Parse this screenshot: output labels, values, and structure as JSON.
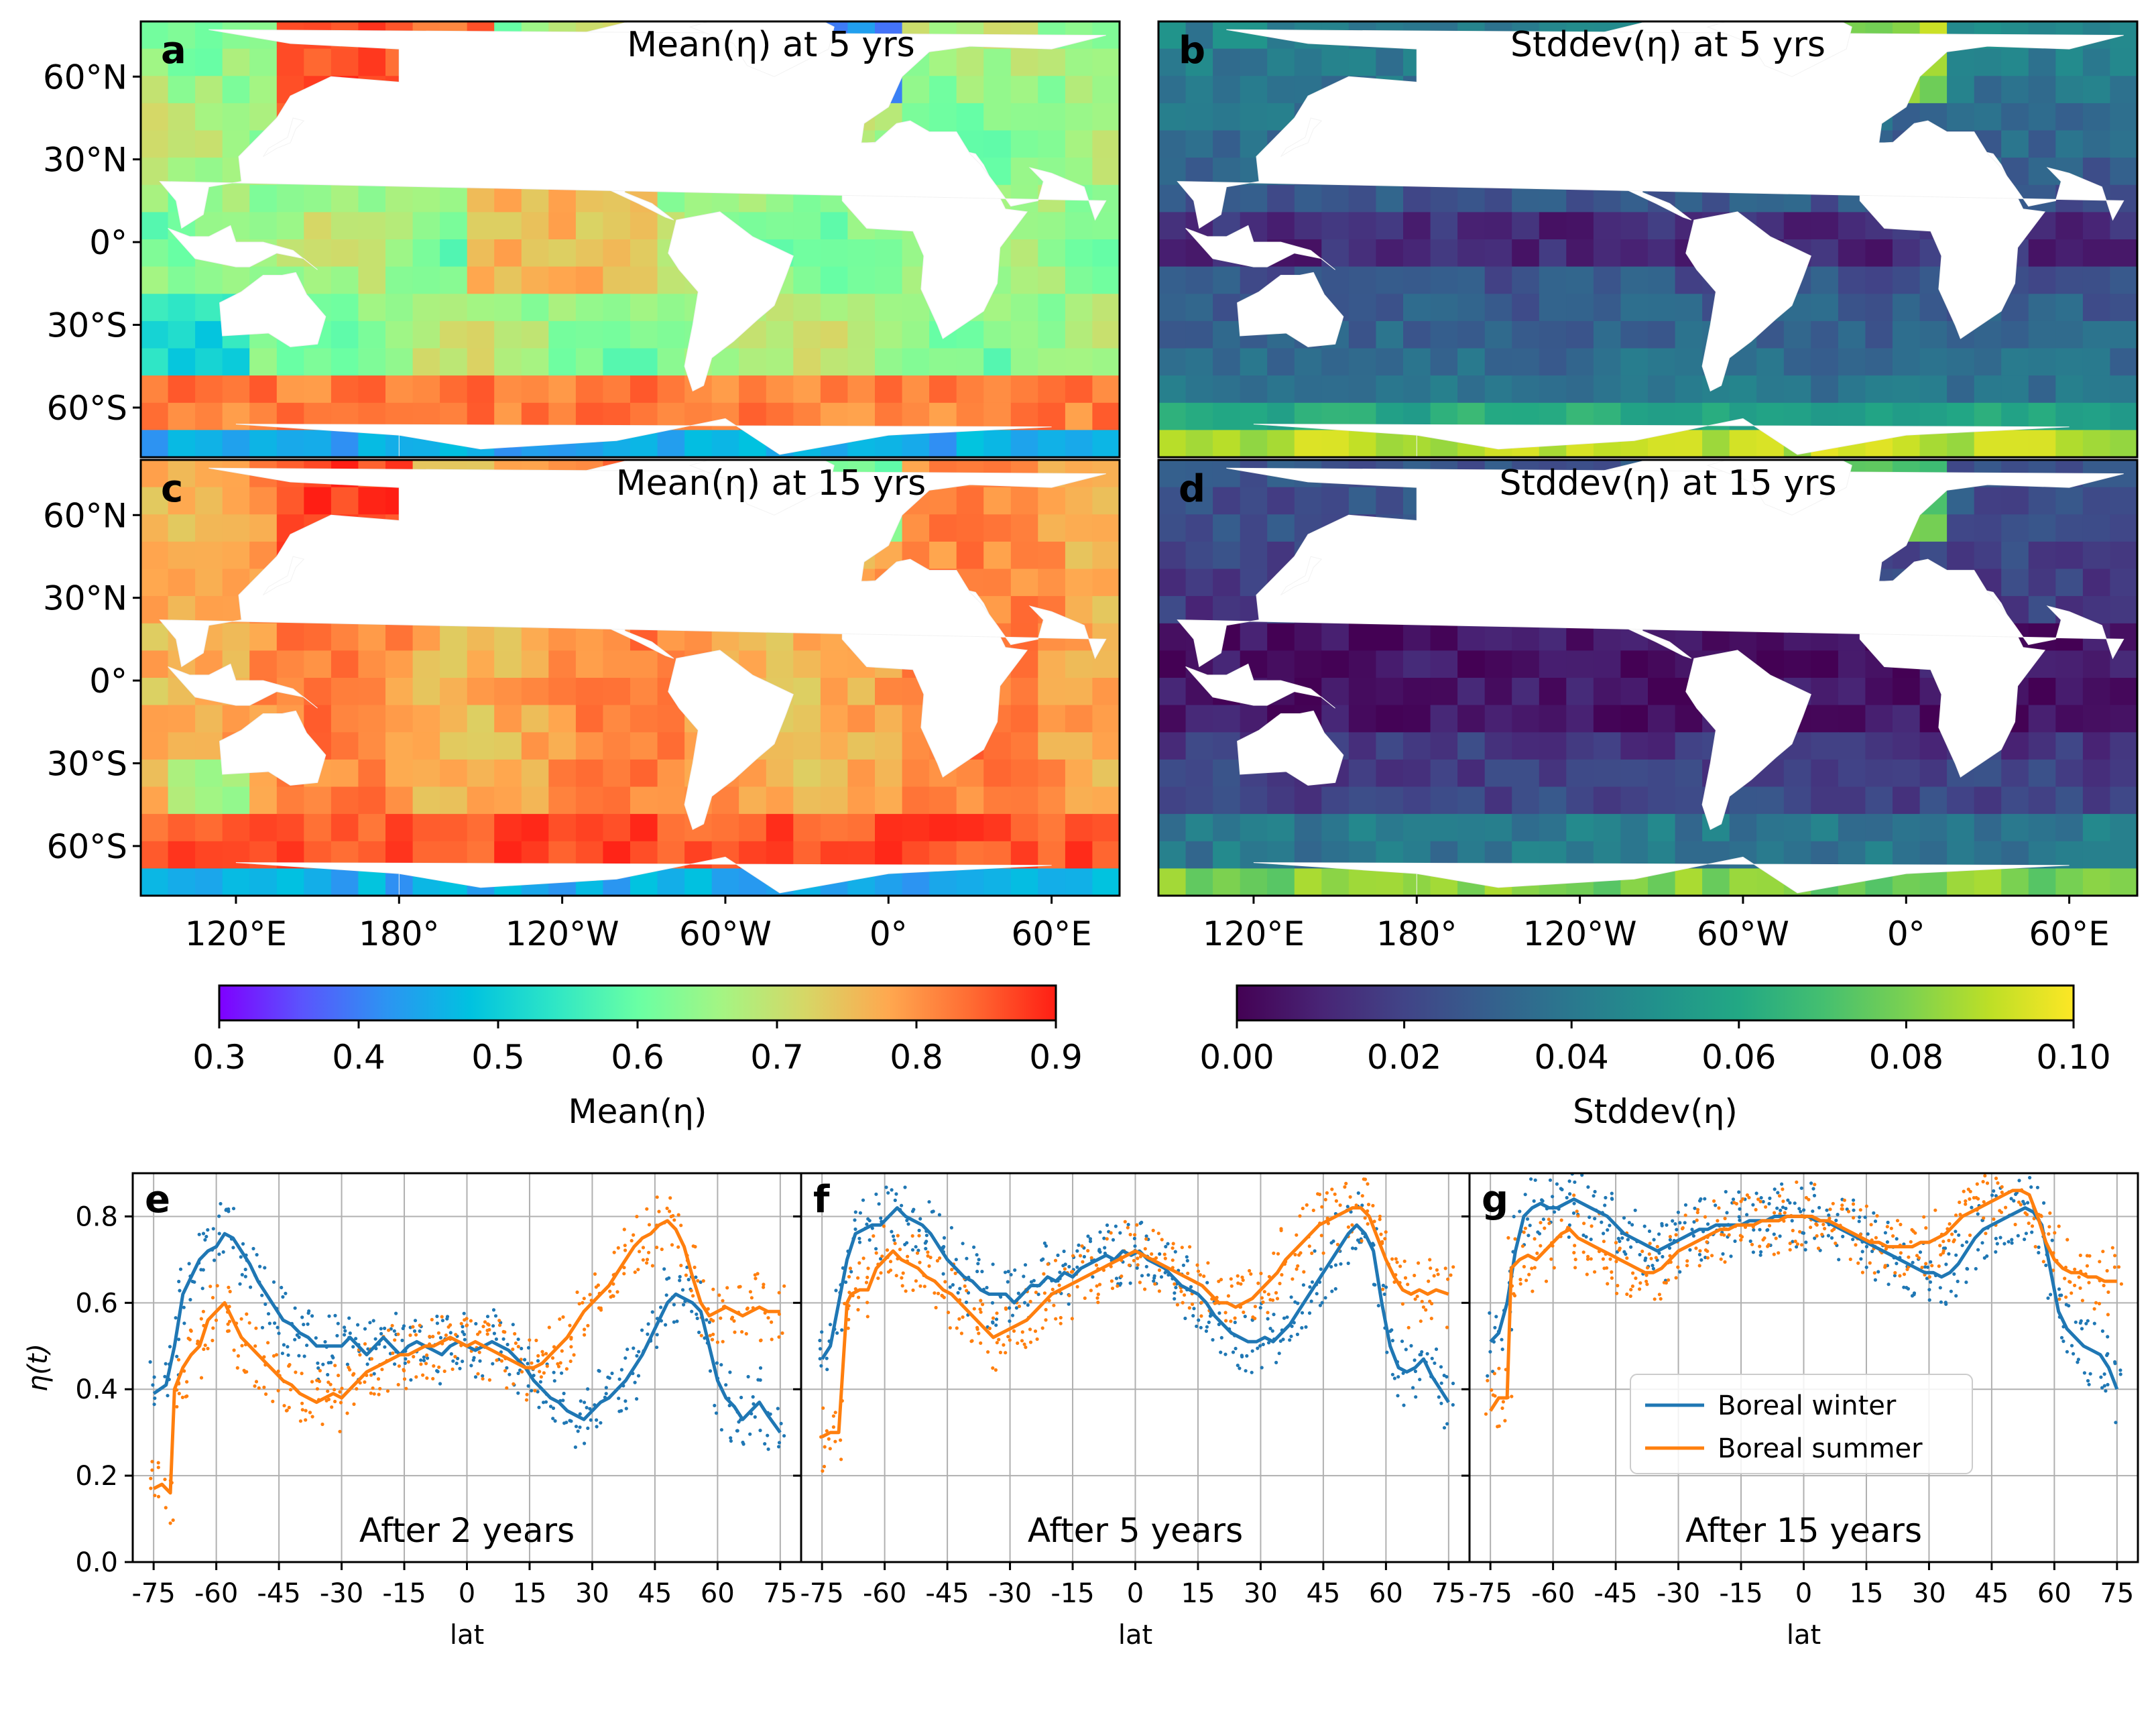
{
  "map_panels": [
    {
      "letter": "a",
      "title": "Mean(η) at 5 yrs",
      "variable": "mean",
      "years": 5
    },
    {
      "letter": "b",
      "title": "Stddev(η) at 5 yrs",
      "variable": "stddev",
      "years": 5
    },
    {
      "letter": "c",
      "title": "Mean(η) at 15 yrs",
      "variable": "mean",
      "years": 15
    },
    {
      "letter": "d",
      "title": "Stddev(η) at 15 yrs",
      "variable": "stddev",
      "years": 15
    }
  ],
  "map_lat_ticks": [
    "60°N",
    "30°N",
    "0°",
    "30°S",
    "60°S"
  ],
  "map_lon_ticks": [
    "120°E",
    "180°",
    "120°W",
    "60°W",
    "0°",
    "60°E"
  ],
  "colorbars": [
    {
      "label": "Mean(η)",
      "ticks": [
        "0.3",
        "0.4",
        "0.5",
        "0.6",
        "0.7",
        "0.8",
        "0.9"
      ],
      "colormap": "rainbow",
      "range": [
        0.3,
        0.9
      ]
    },
    {
      "label": "Stddev(η)",
      "ticks": [
        "0.00",
        "0.02",
        "0.04",
        "0.06",
        "0.08",
        "0.10"
      ],
      "colormap": "viridis",
      "range": [
        0.0,
        0.1
      ]
    }
  ],
  "colors": {
    "boreal_winter": "#1f77b4",
    "boreal_summer": "#ff7f0e",
    "land": "#ffffff",
    "grid": "#b0b0b0"
  },
  "chart_data": [
    {
      "type": "line",
      "panel": "e",
      "caption": "After 2 years",
      "xlabel": "lat",
      "ylabel": "η(t)",
      "xlim": [
        -80,
        80
      ],
      "ylim": [
        0.0,
        0.9
      ],
      "xticks": [
        -75,
        -60,
        -45,
        -30,
        -15,
        0,
        15,
        30,
        45,
        60,
        75
      ],
      "yticks": [
        0.0,
        0.2,
        0.4,
        0.6,
        0.8
      ],
      "grid": true,
      "series": [
        {
          "name": "Boreal winter",
          "x": [
            -75,
            -72,
            -70,
            -68,
            -66,
            -64,
            -62,
            -60,
            -58,
            -56,
            -54,
            -52,
            -50,
            -48,
            -46,
            -44,
            -42,
            -40,
            -38,
            -36,
            -34,
            -32,
            -30,
            -28,
            -26,
            -24,
            -22,
            -20,
            -18,
            -16,
            -14,
            -12,
            -10,
            -8,
            -6,
            -4,
            -2,
            0,
            2,
            4,
            6,
            8,
            10,
            12,
            14,
            16,
            18,
            20,
            22,
            24,
            26,
            28,
            30,
            32,
            34,
            36,
            38,
            40,
            42,
            44,
            46,
            48,
            50,
            52,
            54,
            56,
            58,
            60,
            62,
            64,
            66,
            68,
            70,
            72,
            75
          ],
          "y": [
            0.39,
            0.41,
            0.5,
            0.62,
            0.66,
            0.7,
            0.72,
            0.73,
            0.76,
            0.75,
            0.72,
            0.69,
            0.65,
            0.62,
            0.59,
            0.56,
            0.55,
            0.53,
            0.52,
            0.5,
            0.5,
            0.5,
            0.5,
            0.52,
            0.5,
            0.48,
            0.5,
            0.52,
            0.5,
            0.48,
            0.5,
            0.51,
            0.5,
            0.49,
            0.48,
            0.5,
            0.51,
            0.5,
            0.49,
            0.5,
            0.51,
            0.5,
            0.49,
            0.47,
            0.45,
            0.42,
            0.4,
            0.38,
            0.37,
            0.35,
            0.34,
            0.33,
            0.35,
            0.37,
            0.38,
            0.4,
            0.42,
            0.45,
            0.48,
            0.52,
            0.56,
            0.6,
            0.62,
            0.61,
            0.6,
            0.58,
            0.5,
            0.42,
            0.38,
            0.36,
            0.33,
            0.35,
            0.37,
            0.34,
            0.3
          ]
        },
        {
          "name": "Boreal summer",
          "x": [
            -75,
            -73,
            -71,
            -70,
            -68,
            -66,
            -64,
            -62,
            -60,
            -58,
            -56,
            -54,
            -52,
            -50,
            -48,
            -46,
            -44,
            -42,
            -40,
            -38,
            -36,
            -34,
            -32,
            -30,
            -28,
            -26,
            -24,
            -22,
            -20,
            -18,
            -16,
            -14,
            -12,
            -10,
            -8,
            -6,
            -4,
            -2,
            0,
            2,
            4,
            6,
            8,
            10,
            12,
            14,
            16,
            18,
            20,
            22,
            24,
            26,
            28,
            30,
            32,
            34,
            36,
            38,
            40,
            42,
            44,
            46,
            48,
            50,
            52,
            54,
            56,
            58,
            60,
            62,
            64,
            66,
            68,
            70,
            72,
            75
          ],
          "y": [
            0.17,
            0.18,
            0.16,
            0.4,
            0.45,
            0.48,
            0.5,
            0.56,
            0.58,
            0.6,
            0.56,
            0.52,
            0.5,
            0.48,
            0.46,
            0.44,
            0.42,
            0.41,
            0.39,
            0.38,
            0.37,
            0.38,
            0.39,
            0.38,
            0.4,
            0.42,
            0.44,
            0.45,
            0.46,
            0.47,
            0.48,
            0.48,
            0.49,
            0.5,
            0.5,
            0.51,
            0.52,
            0.51,
            0.5,
            0.51,
            0.5,
            0.49,
            0.48,
            0.47,
            0.46,
            0.45,
            0.45,
            0.46,
            0.48,
            0.5,
            0.52,
            0.55,
            0.58,
            0.6,
            0.62,
            0.64,
            0.67,
            0.7,
            0.73,
            0.75,
            0.76,
            0.78,
            0.79,
            0.77,
            0.73,
            0.66,
            0.6,
            0.57,
            0.58,
            0.59,
            0.58,
            0.57,
            0.58,
            0.59,
            0.58,
            0.58
          ]
        }
      ]
    },
    {
      "type": "line",
      "panel": "f",
      "caption": "After 5 years",
      "xlabel": "lat",
      "ylabel": "",
      "xlim": [
        -80,
        80
      ],
      "ylim": [
        0.0,
        0.9
      ],
      "xticks": [
        -75,
        -60,
        -45,
        -30,
        -15,
        0,
        15,
        30,
        45,
        60,
        75
      ],
      "yticks": [
        0.0,
        0.2,
        0.4,
        0.6,
        0.8
      ],
      "grid": true,
      "series": [
        {
          "name": "Boreal winter",
          "x": [
            -75,
            -73,
            -71,
            -69,
            -67,
            -65,
            -63,
            -61,
            -59,
            -57,
            -55,
            -53,
            -51,
            -49,
            -47,
            -45,
            -43,
            -41,
            -39,
            -37,
            -35,
            -33,
            -31,
            -29,
            -27,
            -25,
            -23,
            -21,
            -19,
            -17,
            -15,
            -13,
            -11,
            -9,
            -7,
            -5,
            -3,
            -1,
            1,
            3,
            5,
            7,
            9,
            11,
            13,
            15,
            17,
            19,
            21,
            23,
            25,
            27,
            29,
            31,
            33,
            35,
            37,
            39,
            41,
            43,
            45,
            47,
            49,
            51,
            53,
            55,
            57,
            59,
            61,
            63,
            65,
            67,
            69,
            71,
            73,
            75
          ],
          "y": [
            0.47,
            0.5,
            0.6,
            0.7,
            0.76,
            0.77,
            0.78,
            0.78,
            0.8,
            0.82,
            0.8,
            0.79,
            0.78,
            0.76,
            0.73,
            0.7,
            0.68,
            0.66,
            0.65,
            0.63,
            0.62,
            0.62,
            0.62,
            0.6,
            0.62,
            0.64,
            0.64,
            0.66,
            0.65,
            0.67,
            0.66,
            0.68,
            0.69,
            0.7,
            0.71,
            0.7,
            0.72,
            0.71,
            0.72,
            0.7,
            0.69,
            0.68,
            0.66,
            0.64,
            0.63,
            0.62,
            0.6,
            0.57,
            0.55,
            0.53,
            0.52,
            0.51,
            0.51,
            0.52,
            0.51,
            0.53,
            0.55,
            0.58,
            0.61,
            0.64,
            0.67,
            0.7,
            0.73,
            0.76,
            0.78,
            0.76,
            0.72,
            0.6,
            0.5,
            0.45,
            0.44,
            0.45,
            0.47,
            0.43,
            0.4,
            0.37
          ]
        },
        {
          "name": "Boreal summer",
          "x": [
            -75,
            -73,
            -71,
            -69,
            -68,
            -66,
            -64,
            -62,
            -60,
            -58,
            -56,
            -54,
            -52,
            -50,
            -48,
            -46,
            -44,
            -42,
            -40,
            -38,
            -36,
            -34,
            -32,
            -30,
            -28,
            -26,
            -24,
            -22,
            -20,
            -18,
            -16,
            -14,
            -12,
            -10,
            -8,
            -6,
            -4,
            -2,
            0,
            2,
            4,
            6,
            8,
            10,
            12,
            14,
            16,
            18,
            20,
            22,
            24,
            26,
            28,
            30,
            32,
            34,
            36,
            38,
            40,
            42,
            44,
            46,
            48,
            50,
            52,
            54,
            56,
            58,
            60,
            62,
            64,
            66,
            68,
            70,
            72,
            75
          ],
          "y": [
            0.29,
            0.3,
            0.3,
            0.6,
            0.62,
            0.63,
            0.63,
            0.68,
            0.7,
            0.72,
            0.7,
            0.69,
            0.68,
            0.66,
            0.65,
            0.63,
            0.62,
            0.6,
            0.58,
            0.56,
            0.54,
            0.52,
            0.53,
            0.54,
            0.55,
            0.56,
            0.58,
            0.6,
            0.62,
            0.63,
            0.64,
            0.65,
            0.66,
            0.67,
            0.68,
            0.69,
            0.7,
            0.71,
            0.72,
            0.71,
            0.7,
            0.69,
            0.68,
            0.67,
            0.66,
            0.65,
            0.64,
            0.62,
            0.6,
            0.6,
            0.59,
            0.6,
            0.61,
            0.63,
            0.65,
            0.67,
            0.7,
            0.72,
            0.74,
            0.76,
            0.78,
            0.79,
            0.8,
            0.81,
            0.82,
            0.82,
            0.8,
            0.75,
            0.7,
            0.66,
            0.63,
            0.62,
            0.63,
            0.62,
            0.63,
            0.62
          ]
        }
      ]
    },
    {
      "type": "line",
      "panel": "g",
      "caption": "After 15 years",
      "xlabel": "lat",
      "ylabel": "",
      "xlim": [
        -80,
        80
      ],
      "ylim": [
        0.0,
        0.9
      ],
      "xticks": [
        -75,
        -60,
        -45,
        -30,
        -15,
        0,
        15,
        30,
        45,
        60,
        75
      ],
      "yticks": [
        0.0,
        0.2,
        0.4,
        0.6,
        0.8
      ],
      "grid": true,
      "legend": {
        "position": "lower-right",
        "entries": [
          "Boreal winter",
          "Boreal summer"
        ]
      },
      "series": [
        {
          "name": "Boreal winter",
          "x": [
            -75,
            -73,
            -71,
            -69,
            -67,
            -65,
            -63,
            -61,
            -59,
            -57,
            -55,
            -53,
            -51,
            -49,
            -47,
            -45,
            -43,
            -41,
            -39,
            -37,
            -35,
            -33,
            -31,
            -29,
            -27,
            -25,
            -23,
            -21,
            -19,
            -17,
            -15,
            -13,
            -11,
            -9,
            -7,
            -5,
            -3,
            -1,
            1,
            3,
            5,
            7,
            9,
            11,
            13,
            15,
            17,
            19,
            21,
            23,
            25,
            27,
            29,
            31,
            33,
            35,
            37,
            39,
            41,
            43,
            45,
            47,
            49,
            51,
            53,
            55,
            57,
            59,
            61,
            63,
            65,
            67,
            69,
            71,
            73,
            75
          ],
          "y": [
            0.51,
            0.53,
            0.6,
            0.72,
            0.8,
            0.82,
            0.83,
            0.82,
            0.82,
            0.83,
            0.84,
            0.83,
            0.82,
            0.81,
            0.8,
            0.78,
            0.76,
            0.75,
            0.74,
            0.73,
            0.72,
            0.73,
            0.74,
            0.75,
            0.76,
            0.77,
            0.77,
            0.78,
            0.78,
            0.78,
            0.78,
            0.79,
            0.79,
            0.79,
            0.8,
            0.8,
            0.8,
            0.8,
            0.8,
            0.79,
            0.79,
            0.78,
            0.77,
            0.76,
            0.75,
            0.74,
            0.73,
            0.72,
            0.71,
            0.7,
            0.69,
            0.68,
            0.67,
            0.67,
            0.66,
            0.67,
            0.69,
            0.72,
            0.75,
            0.77,
            0.78,
            0.79,
            0.8,
            0.81,
            0.82,
            0.81,
            0.78,
            0.68,
            0.58,
            0.54,
            0.52,
            0.5,
            0.49,
            0.48,
            0.45,
            0.4
          ]
        },
        {
          "name": "Boreal summer",
          "x": [
            -75,
            -73,
            -71,
            -70,
            -68,
            -66,
            -64,
            -62,
            -60,
            -58,
            -56,
            -54,
            -52,
            -50,
            -48,
            -46,
            -44,
            -42,
            -40,
            -38,
            -36,
            -34,
            -32,
            -30,
            -28,
            -26,
            -24,
            -22,
            -20,
            -18,
            -16,
            -14,
            -12,
            -10,
            -8,
            -6,
            -4,
            -2,
            0,
            2,
            4,
            6,
            8,
            10,
            12,
            14,
            16,
            18,
            20,
            22,
            24,
            26,
            28,
            30,
            32,
            34,
            36,
            38,
            40,
            42,
            44,
            46,
            48,
            50,
            52,
            54,
            56,
            58,
            60,
            62,
            64,
            66,
            68,
            70,
            72,
            75
          ],
          "y": [
            0.35,
            0.38,
            0.38,
            0.68,
            0.7,
            0.71,
            0.7,
            0.72,
            0.74,
            0.76,
            0.77,
            0.75,
            0.74,
            0.73,
            0.72,
            0.71,
            0.7,
            0.69,
            0.68,
            0.67,
            0.67,
            0.68,
            0.7,
            0.72,
            0.73,
            0.74,
            0.75,
            0.76,
            0.77,
            0.77,
            0.78,
            0.78,
            0.78,
            0.79,
            0.79,
            0.79,
            0.8,
            0.8,
            0.8,
            0.8,
            0.79,
            0.79,
            0.78,
            0.77,
            0.76,
            0.75,
            0.74,
            0.74,
            0.73,
            0.73,
            0.73,
            0.73,
            0.74,
            0.74,
            0.75,
            0.76,
            0.78,
            0.8,
            0.81,
            0.82,
            0.83,
            0.84,
            0.85,
            0.86,
            0.86,
            0.85,
            0.8,
            0.74,
            0.7,
            0.68,
            0.67,
            0.67,
            0.66,
            0.66,
            0.65,
            0.65
          ]
        }
      ]
    }
  ]
}
